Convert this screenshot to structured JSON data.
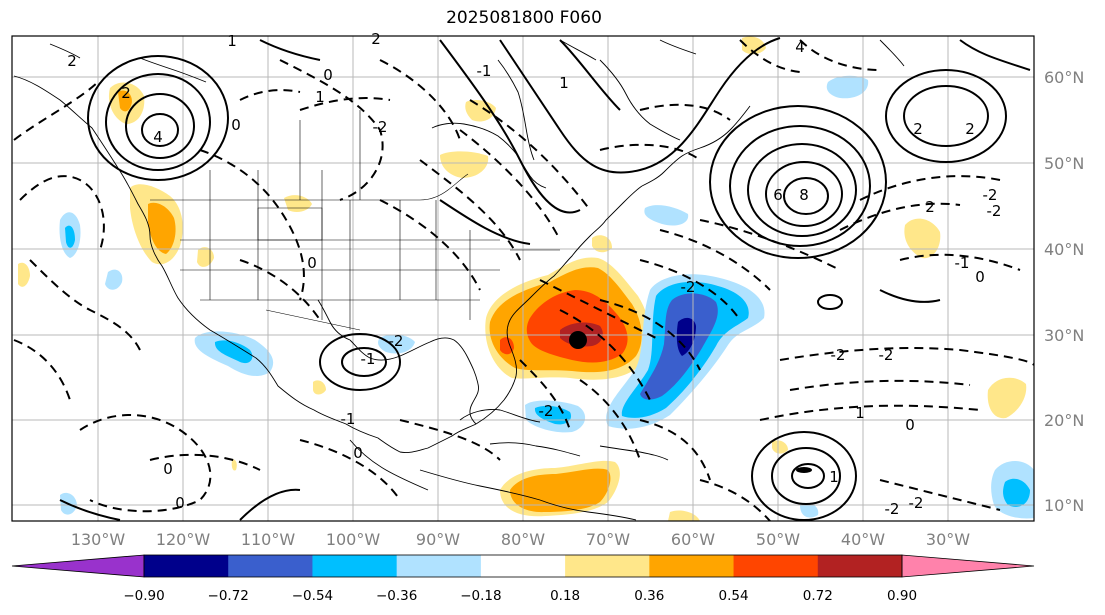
{
  "title": "2025081800 F060",
  "longitude_labels": [
    "130°W",
    "120°W",
    "110°W",
    "100°W",
    "90°W",
    "80°W",
    "70°W",
    "60°W",
    "50°W",
    "40°W",
    "30°W"
  ],
  "latitude_labels": [
    "60°N",
    "50°N",
    "40°N",
    "30°N",
    "20°N",
    "10°N"
  ],
  "colorbar": {
    "tick_labels": [
      "−0.90",
      "−0.72",
      "−0.54",
      "−0.36",
      "−0.18",
      "0.18",
      "0.36",
      "0.54",
      "0.72",
      "0.90"
    ],
    "colors": [
      "#9932cc",
      "#00008b",
      "#3a5fcd",
      "#00bfff",
      "#b0e2ff",
      "#ffffff",
      "#ffe78a",
      "#ffa500",
      "#ff4500",
      "#b22222",
      "#ff82ab"
    ]
  },
  "contour_labels": [
    "1",
    "2",
    "0",
    "-1",
    "4",
    "2",
    "-2",
    "1",
    "2",
    "0",
    "4",
    "8",
    "6",
    "2",
    "2",
    "-2",
    "-2",
    "0",
    "-1",
    "2",
    "-2",
    "-2",
    "1",
    "0",
    "-2",
    "-2",
    "1",
    "0",
    "0",
    "-1",
    "0",
    "-2",
    "-1",
    "-2",
    "0",
    "-2",
    "1"
  ],
  "colors": {
    "land_line": "#000000",
    "grid": "#b0b0b0",
    "axis_label": "#808080"
  }
}
